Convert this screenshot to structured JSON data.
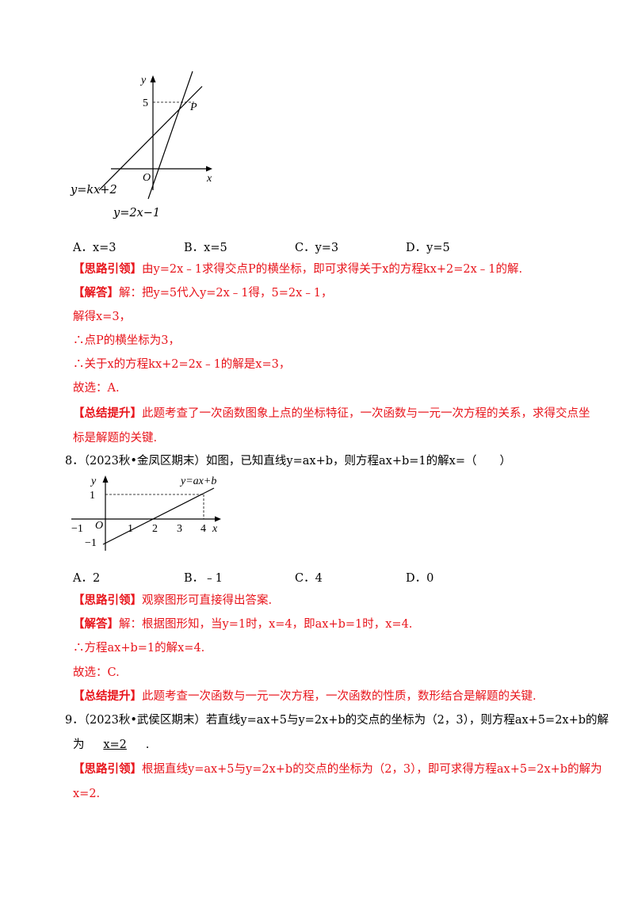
{
  "fig1": {
    "y_axis": "y",
    "x_axis": "x",
    "origin": "O",
    "tick_5": "5",
    "point": "P",
    "line1_label": "y=kx+2",
    "line2_label": "y=2x−1"
  },
  "q7": {
    "options": [
      "A．x=3",
      "B．x=5",
      "C．y=3",
      "D．y=5"
    ],
    "hint_tag": "【思路引领】",
    "hint": "由y=2x﹣1求得交点P的横坐标，即可求得关于x的方程kx+2=2x﹣1的解.",
    "answer_tag": "【解答】",
    "answer_lines": [
      "解：把y=5代入y=2x﹣1得，5=2x﹣1，",
      "解得x=3，",
      "∴点P的横坐标为3，",
      "∴关于x的方程kx+2=2x﹣1的解是x=3，",
      "故选：A."
    ],
    "summary_tag": "【总结提升】",
    "summary_lines": [
      "此题考查了一次函数图象上点的坐标特征，一次函数与一元一次方程的关系，求得交点坐",
      "标是解题的关键."
    ]
  },
  "q8": {
    "stem": "8．（2023秋•金凤区期末）如图，已知直线y=ax+b，则方程ax+b=1的解x=（　　）",
    "fig": {
      "y_axis": "y",
      "x_axis": "x",
      "origin": "O",
      "line_label": "y=ax+b",
      "x_ticks": [
        "−1",
        "1",
        "2",
        "3",
        "4"
      ],
      "y_ticks": [
        "1",
        "−1"
      ]
    },
    "options": [
      "A．2",
      "B．﹣1",
      "C．4",
      "D．0"
    ],
    "hint_tag": "【思路引领】",
    "hint": "观察图形可直接得出答案.",
    "answer_tag": "【解答】",
    "answer_lines": [
      "解：根据图形知，当y=1时，x=4，即ax+b=1时，x=4.",
      "∴方程ax+b=1的解x=4.",
      "故选：C."
    ],
    "summary_tag": "【总结提升】",
    "summary": "此题考查一次函数与一元一次方程，一次函数的性质，数形结合是解题的关键."
  },
  "q9": {
    "stem1": "9．（2023秋•武侯区期末）若直线y=ax+5与y=2x+b的交点的坐标为（2，3），则方程ax+5=2x+b的解",
    "stem2_prefix": "为",
    "blank": "x=2",
    "stem2_suffix": ".",
    "hint_tag": "【思路引领】",
    "hint_lines": [
      "根据直线y=ax+5与y=2x+b的交点的坐标为（2，3），即可求得方程ax+5=2x+b的解为",
      "x=2."
    ]
  }
}
